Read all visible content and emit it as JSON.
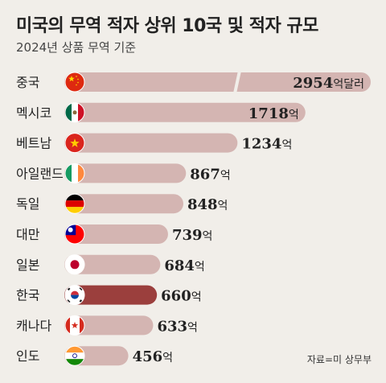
{
  "title": "미국의 무역 적자 상위 10국 및 적자 규모",
  "subtitle": "2024년 상품 무역 기준",
  "source": "자료=미 상무부",
  "chart_data": {
    "type": "bar",
    "orientation": "horizontal",
    "title": "미국의 무역 적자 상위 10국 및 적자 규모",
    "subtitle": "2024년 상품 무역 기준",
    "unit": "억",
    "categories": [
      "중국",
      "멕시코",
      "베트남",
      "아일랜드",
      "독일",
      "대만",
      "일본",
      "한국",
      "캐나다",
      "인도"
    ],
    "values": [
      2954,
      1718,
      1234,
      867,
      848,
      739,
      684,
      660,
      633,
      456
    ],
    "value_labels": [
      "2954",
      "1718",
      "1234",
      "867",
      "848",
      "739",
      "684",
      "660",
      "633",
      "456"
    ],
    "value_suffixes": [
      "억달러",
      "억",
      "억",
      "억",
      "억",
      "억",
      "억",
      "억",
      "억",
      "억"
    ],
    "highlight": "한국",
    "axis_break_on": "중국",
    "grid": false,
    "legend": "none",
    "colors": {
      "bar": "#d4b5b2",
      "highlight": "#9b3f3d",
      "background": "#f1eee9"
    },
    "flags": [
      "china",
      "mexico",
      "vietnam",
      "ireland",
      "germany",
      "taiwan",
      "japan",
      "korea",
      "canada",
      "india"
    ]
  }
}
